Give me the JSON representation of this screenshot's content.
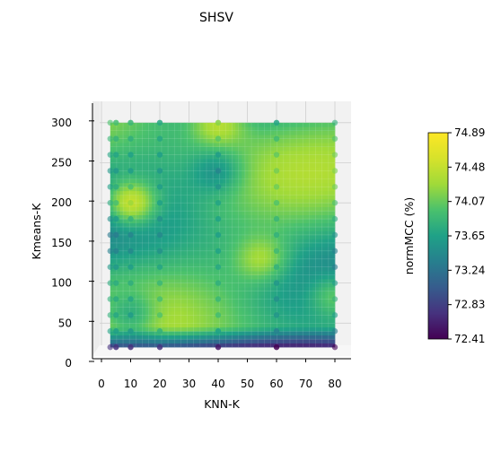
{
  "chart_data": {
    "type": "heatmap",
    "title": "SHSV",
    "xlabel": "KNN-K",
    "ylabel": "Kmeans-K",
    "colorbar_label": "normMCC (%)",
    "colormap": "viridis",
    "x_ticks": [
      0,
      10,
      20,
      30,
      40,
      50,
      60,
      70,
      80
    ],
    "y_ticks": [
      0,
      50,
      100,
      150,
      200,
      250,
      300
    ],
    "x_range": [
      3,
      80
    ],
    "y_range": [
      20,
      300
    ],
    "colorbar_ticks": [
      "72.41",
      "72.83",
      "73.24",
      "73.65",
      "74.07",
      "74.48",
      "74.89"
    ],
    "colorbar_range": [
      72.41,
      74.89
    ],
    "grid": true,
    "scatter_x": [
      3,
      5,
      10,
      20,
      40,
      60,
      80
    ],
    "scatter_y": [
      20,
      40,
      60,
      80,
      100,
      120,
      140,
      160,
      180,
      200,
      220,
      240,
      260,
      280,
      300
    ],
    "hotspots": [
      {
        "x": 10,
        "y": 200,
        "value": 74.89
      },
      {
        "x": 40,
        "y": 300,
        "value": 74.45
      },
      {
        "x": 55,
        "y": 130,
        "value": 74.4
      },
      {
        "x": 80,
        "y": 85,
        "value": 74.45
      },
      {
        "x": 40,
        "y": 240,
        "value": 73.4
      },
      {
        "x": 10,
        "y": 60,
        "value": 73.3
      }
    ]
  }
}
